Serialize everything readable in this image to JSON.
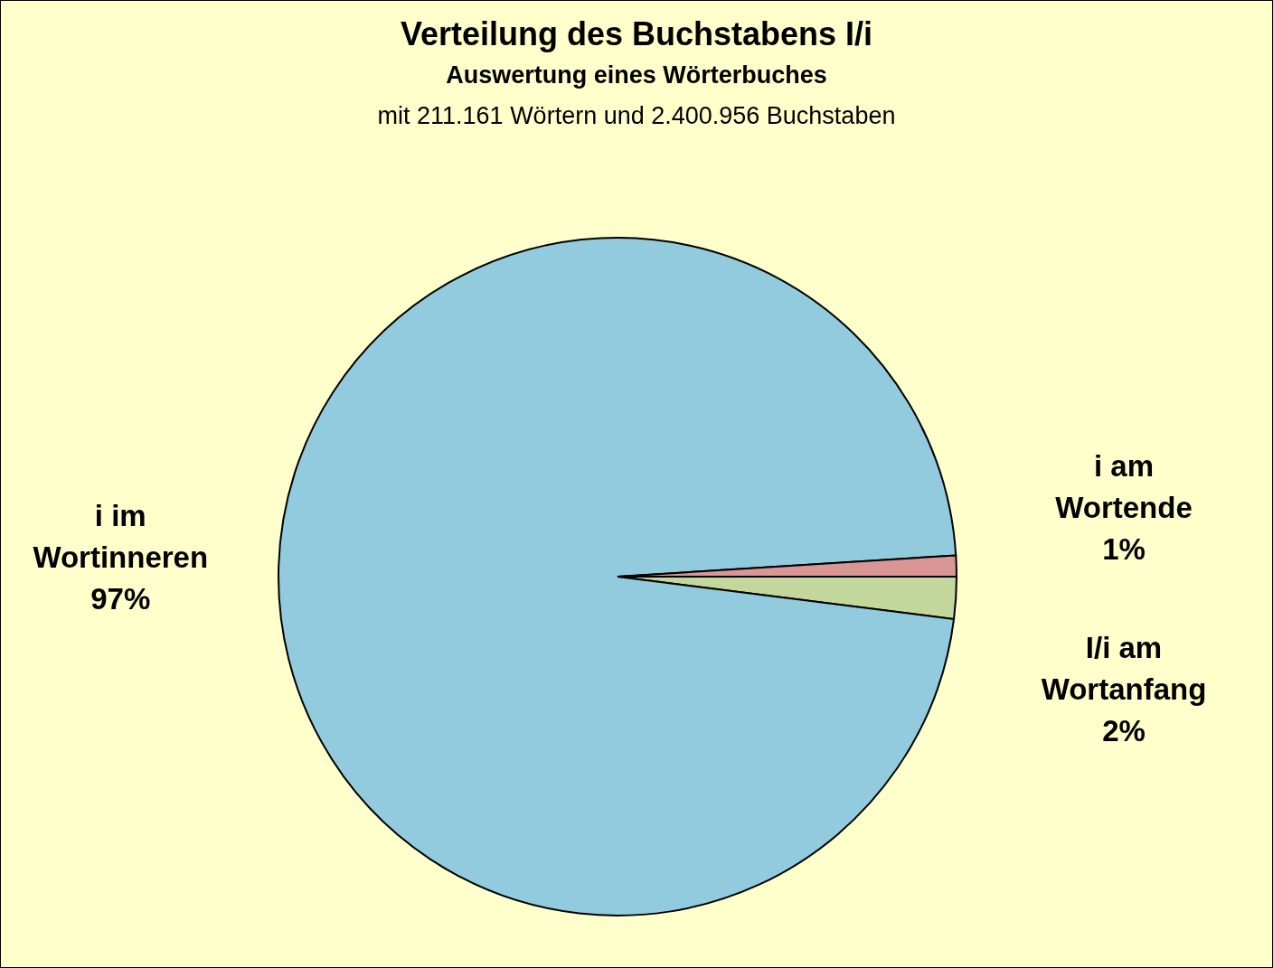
{
  "chart_data": {
    "type": "pie",
    "title": "Verteilung des Buchstabens I/i",
    "subtitle": "Auswertung eines Wörterbuches",
    "annotations": [
      "mit 211.161 Wörtern und 2.400.956 Buchstaben"
    ],
    "categories": [
      "I/i am Wortanfang",
      "i im Wortinneren",
      "i am Wortende"
    ],
    "values": [
      2,
      97,
      1
    ],
    "value_labels": [
      "2%",
      "97%",
      "1%"
    ],
    "colors": [
      "#c3d69b",
      "#92cade",
      "#d99694"
    ],
    "legend": false
  }
}
